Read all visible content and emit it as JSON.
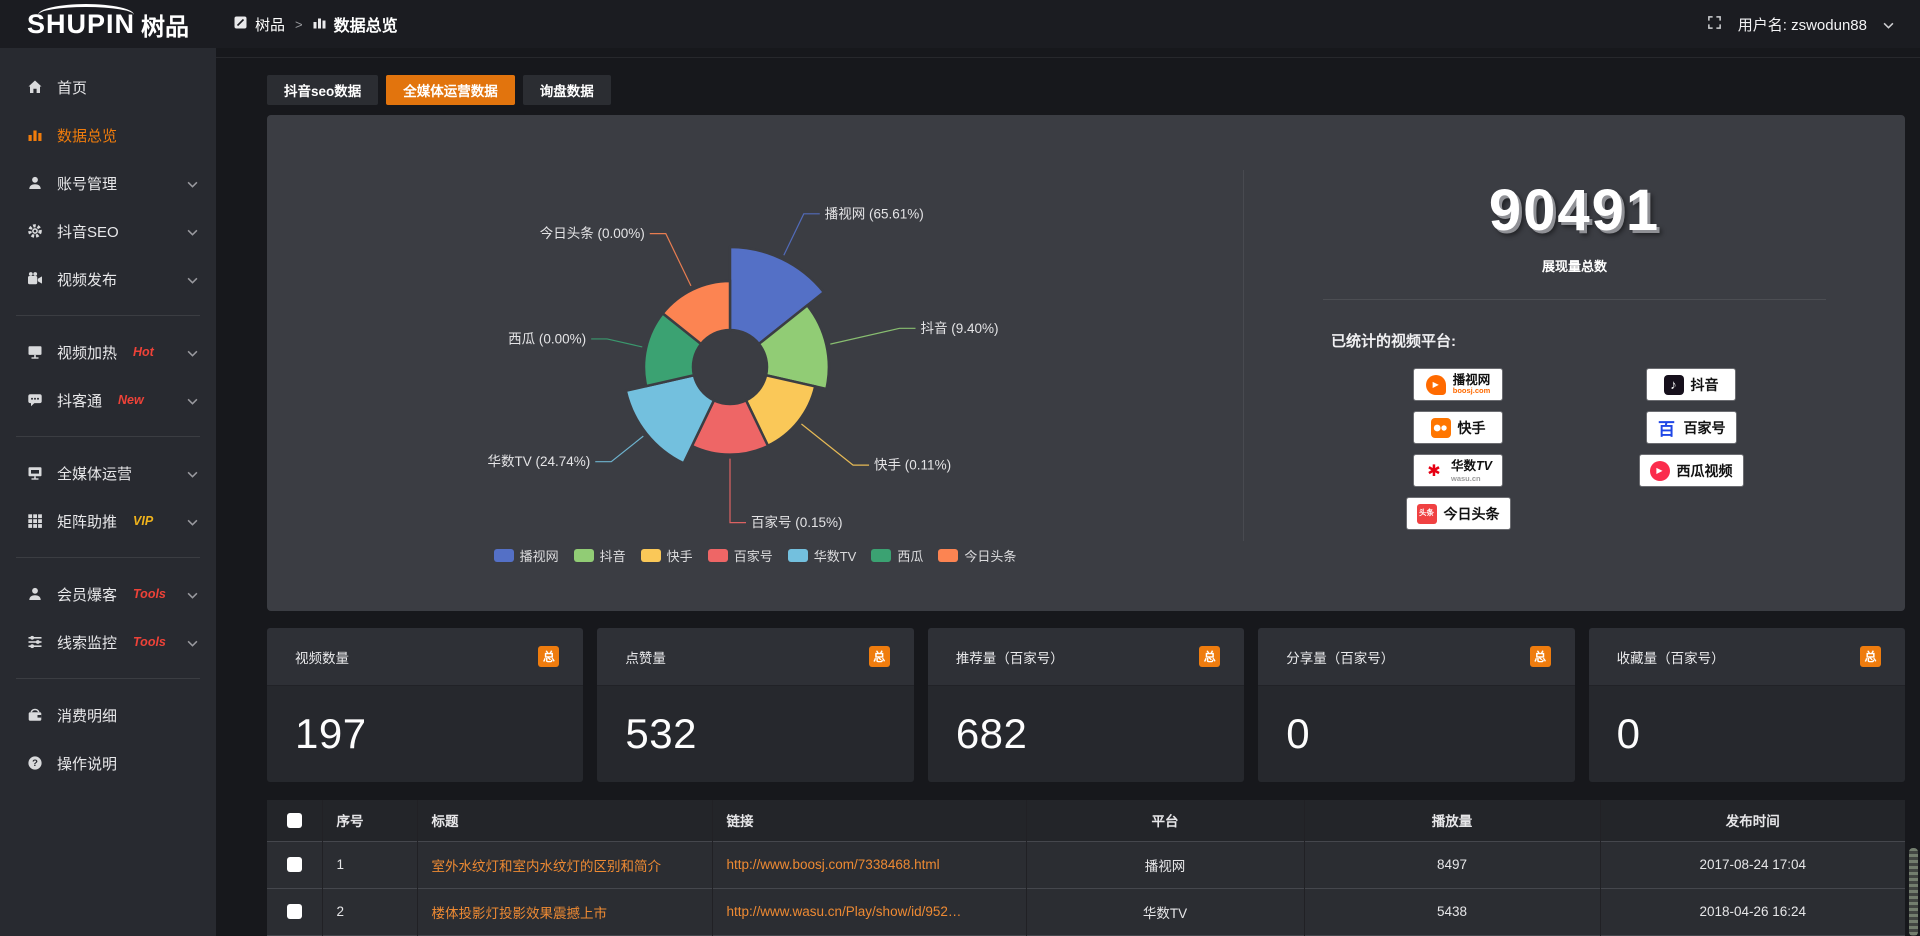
{
  "header": {
    "logo_en": "SHUPIN",
    "logo_cn": "树品",
    "breadcrumb": [
      "树品",
      "数据总览"
    ],
    "breadcrumb_sep": ">",
    "username": "用户名: zswodun88"
  },
  "sidebar": {
    "items": [
      {
        "label": "首页",
        "icon": "home"
      },
      {
        "label": "数据总览",
        "icon": "bar-chart",
        "active": true
      },
      {
        "label": "账号管理",
        "icon": "user",
        "chevron": true
      },
      {
        "label": "抖音SEO",
        "icon": "gear",
        "chevron": true
      },
      {
        "label": "视频发布",
        "icon": "video-camera",
        "chevron": true,
        "divider_after": true
      },
      {
        "label": "视频加热",
        "icon": "monitor-play",
        "badge": "Hot",
        "badge_color": "red",
        "chevron": true
      },
      {
        "label": "抖客通",
        "icon": "chat",
        "badge": "New",
        "badge_color": "red",
        "chevron": true,
        "divider_after": true
      },
      {
        "label": "全媒体运营",
        "icon": "monitor",
        "chevron": true
      },
      {
        "label": "矩阵助推",
        "icon": "grid",
        "badge": "VIP",
        "badge_color": "gold",
        "chevron": true,
        "divider_after": true
      },
      {
        "label": "会员爆客",
        "icon": "person",
        "badge": "Tools",
        "badge_color": "red",
        "chevron": true
      },
      {
        "label": "线索监控",
        "icon": "sliders",
        "badge": "Tools",
        "badge_color": "red",
        "chevron": true,
        "divider_after": true
      },
      {
        "label": "消费明细",
        "icon": "wallet"
      },
      {
        "label": "操作说明",
        "icon": "question"
      }
    ]
  },
  "tabs": [
    {
      "label": "抖音seo数据"
    },
    {
      "label": "全媒体运营数据",
      "active": true
    },
    {
      "label": "询盘数据"
    }
  ],
  "chart_data": {
    "type": "pie",
    "variant": "nightingale-rose",
    "label_format": "{name} ({pct}%)",
    "items": [
      {
        "name": "播视网",
        "pct": 65.61,
        "color": "#5470c6"
      },
      {
        "name": "抖音",
        "pct": 9.4,
        "color": "#91cc75"
      },
      {
        "name": "快手",
        "pct": 0.11,
        "color": "#fac858"
      },
      {
        "name": "百家号",
        "pct": 0.15,
        "color": "#ee6666"
      },
      {
        "name": "华数TV",
        "pct": 24.74,
        "color": "#73c0de"
      },
      {
        "name": "西瓜",
        "pct": 0.0,
        "color": "#3ba272"
      },
      {
        "name": "今日头条",
        "pct": 0.0,
        "color": "#fc8452"
      }
    ],
    "legend": [
      "播视网",
      "抖音",
      "快手",
      "百家号",
      "华数TV",
      "西瓜",
      "今日头条"
    ],
    "legend_position": "bottom"
  },
  "overview": {
    "total_value": "90491",
    "total_label": "展现量总数",
    "platforms_label": "已统计的视频平台:",
    "platform_columns": [
      [
        {
          "name": "播视网",
          "sub": "boosj.com",
          "logo": "boosj"
        },
        {
          "name": "快手",
          "logo": "kuaishou"
        },
        {
          "name": "华数",
          "name2": "TV",
          "sub": "wasu.cn",
          "logo": "wasu"
        },
        {
          "name": "今日头条",
          "logo": "toutiao",
          "logo_text": "头条"
        }
      ],
      [
        {
          "name": "抖音",
          "logo": "douyin"
        },
        {
          "name": "百家号",
          "logo": "baijiahao",
          "logo_text": "百"
        },
        {
          "name": "西瓜视频",
          "logo": "xigua"
        }
      ]
    ]
  },
  "stat_cards": [
    {
      "title": "视频数量",
      "badge": "总",
      "value": "197"
    },
    {
      "title": "点赞量",
      "badge": "总",
      "value": "532"
    },
    {
      "title": "推荐量（百家号）",
      "badge": "总",
      "value": "682"
    },
    {
      "title": "分享量（百家号）",
      "badge": "总",
      "value": "0"
    },
    {
      "title": "收藏量（百家号）",
      "badge": "总",
      "value": "0"
    }
  ],
  "table": {
    "headers": [
      "序号",
      "标题",
      "链接",
      "平台",
      "播放量",
      "发布时间"
    ],
    "rows": [
      {
        "no": "1",
        "title": "室外水纹灯和室内水纹灯的区别和简介",
        "link": "http://www.boosj.com/7338468.html",
        "platform": "播视网",
        "plays": "8497",
        "time": "2017-08-24 17:04"
      },
      {
        "no": "2",
        "title": "楼体投影灯投影效果震撼上市",
        "link": "http://www.wasu.cn/Play/show/id/952…",
        "platform": "华数TV",
        "plays": "5438",
        "time": "2018-04-26 16:24"
      }
    ]
  },
  "colors": {
    "accent_orange": "#e2740d",
    "link_orange": "#ee8a33",
    "badge_red": "#ee4238",
    "badge_gold": "#f0b31c",
    "panel_bg": "#3b3d43"
  }
}
